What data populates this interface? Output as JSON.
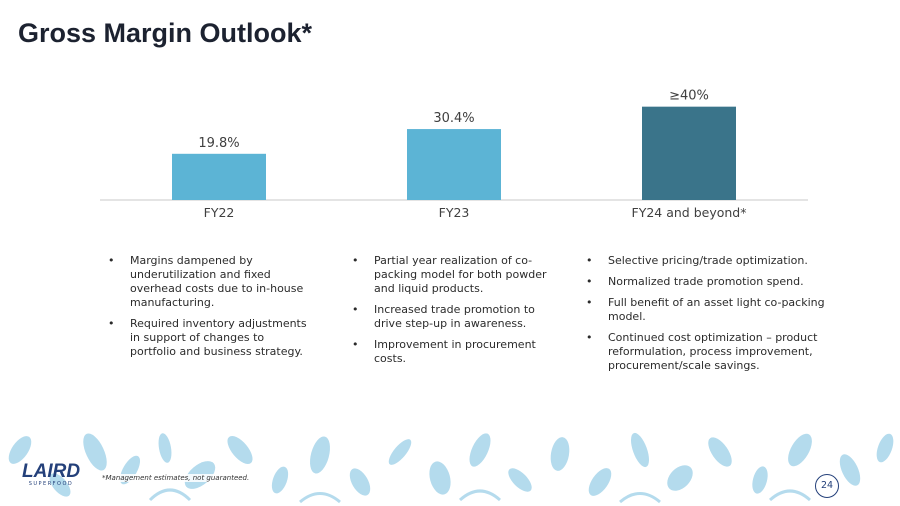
{
  "title": "Gross Margin Outlook*",
  "colors": {
    "bar_light": "#5cb4d5",
    "bar_dark": "#3a748a",
    "axis": "#c8c8c8",
    "decor": "#a8d5ea",
    "logo": "#24407a"
  },
  "chart_data": {
    "type": "bar",
    "title": "Gross Margin Outlook*",
    "categories": [
      "FY22",
      "FY23",
      "FY24 and beyond*"
    ],
    "values": [
      19.8,
      30.4,
      40
    ],
    "value_labels": [
      "19.8%",
      "30.4%",
      "≥40%"
    ],
    "units": "%",
    "xlabel": "",
    "ylabel": "",
    "ylim": [
      0,
      45
    ],
    "grid": false
  },
  "columns": [
    {
      "bullets": [
        "Margins dampened by underutilization and fixed overhead costs due to in-house manufacturing.",
        "Required inventory adjustments in support of changes to portfolio and business strategy."
      ]
    },
    {
      "bullets": [
        "Partial year realization of co-packing model for both powder and liquid products.",
        "Increased trade promotion to drive step-up in awareness.",
        "Improvement in procurement costs."
      ]
    },
    {
      "bullets": [
        "Selective pricing/trade optimization.",
        "Normalized trade promotion spend.",
        "Full benefit of an asset light co-packing model.",
        "Continued cost optimization – product reformulation, process improvement, procurement/scale savings."
      ]
    }
  ],
  "logo": {
    "main": "LAIRD",
    "sub": "SUPERFOOD"
  },
  "footnote": "*Management estimates, not guaranteed.",
  "page_number": "24"
}
